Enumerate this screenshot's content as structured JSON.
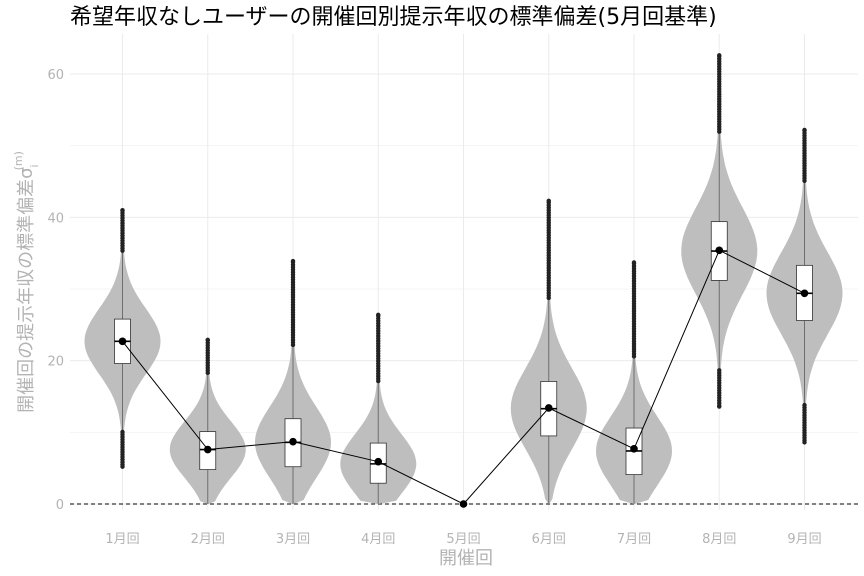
{
  "chart_data": {
    "type": "violin",
    "title": "希望年収なしユーザーの開催回別提示年収の標準偏差(5月回基準)",
    "xlabel": "開催回",
    "ylabel": "開催回の提示年収の標準偏差σ",
    "ylabel_superscript": "(m)",
    "ylabel_subscript": "i",
    "categories": [
      "1月回",
      "2月回",
      "3月回",
      "4月回",
      "5月回",
      "6月回",
      "7月回",
      "8月回",
      "9月回"
    ],
    "ylim": [
      -0.5,
      65
    ],
    "yticks": [
      0,
      20,
      40,
      60
    ],
    "grid": true,
    "reference_line": {
      "y": 0,
      "style": "dashed"
    },
    "mean_line": [
      22.7,
      7.6,
      8.7,
      5.9,
      0,
      13.4,
      7.7,
      35.4,
      29.4
    ],
    "series": [
      {
        "category": "1月回",
        "min": 5.2,
        "q1": 19.6,
        "median": 22.7,
        "q3": 25.8,
        "max": 41.0,
        "mean": 22.7
      },
      {
        "category": "2月回",
        "min": 0.0,
        "q1": 4.8,
        "median": 7.6,
        "q3": 10.1,
        "max": 22.9,
        "mean": 7.6
      },
      {
        "category": "3月回",
        "min": 0.0,
        "q1": 5.2,
        "median": 8.6,
        "q3": 11.9,
        "max": 33.9,
        "mean": 8.7
      },
      {
        "category": "4月回",
        "min": 0.0,
        "q1": 2.9,
        "median": 5.6,
        "q3": 8.5,
        "max": 26.4,
        "mean": 5.9
      },
      {
        "category": "5月回",
        "min": 0.0,
        "q1": 0.0,
        "median": 0.0,
        "q3": 0.0,
        "max": 0.0,
        "mean": 0.0
      },
      {
        "category": "6月回",
        "min": 0.0,
        "q1": 9.5,
        "median": 13.3,
        "q3": 17.1,
        "max": 42.3,
        "mean": 13.4
      },
      {
        "category": "7月回",
        "min": 0.0,
        "q1": 4.1,
        "median": 7.4,
        "q3": 10.6,
        "max": 33.7,
        "mean": 7.7
      },
      {
        "category": "8月回",
        "min": 13.6,
        "q1": 31.2,
        "median": 35.3,
        "q3": 39.4,
        "max": 62.6,
        "mean": 35.4
      },
      {
        "category": "9月回",
        "min": 8.6,
        "q1": 25.6,
        "median": 29.4,
        "q3": 33.3,
        "max": 52.2,
        "mean": 29.4
      }
    ]
  }
}
